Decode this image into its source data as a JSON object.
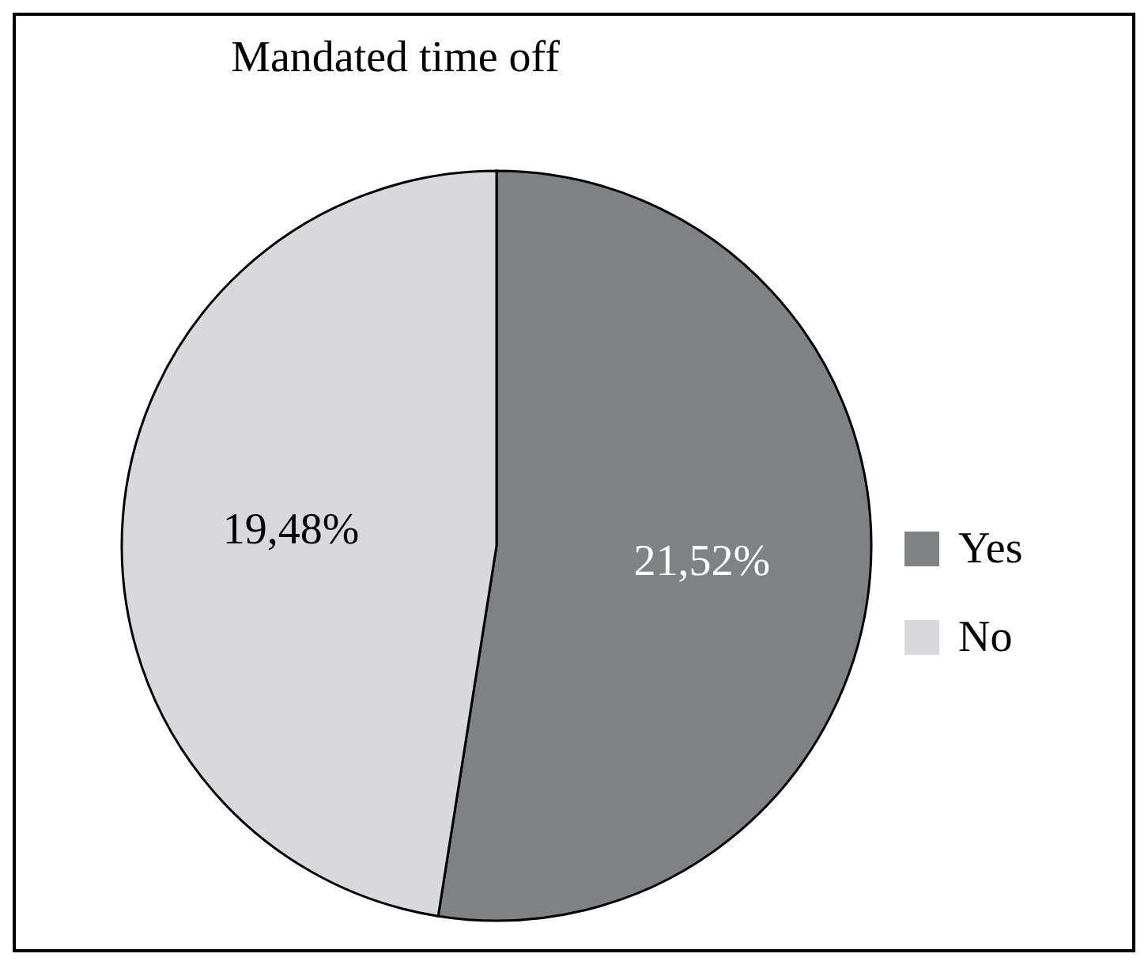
{
  "chart_data": {
    "type": "pie",
    "title": "Mandated time off",
    "categories": [
      "Yes",
      "No"
    ],
    "values": [
      21.52,
      19.48
    ],
    "colors": [
      "#808184",
      "#d9d9db"
    ],
    "value_labels": [
      "21,52%",
      "19,48%"
    ],
    "legend": "right"
  }
}
